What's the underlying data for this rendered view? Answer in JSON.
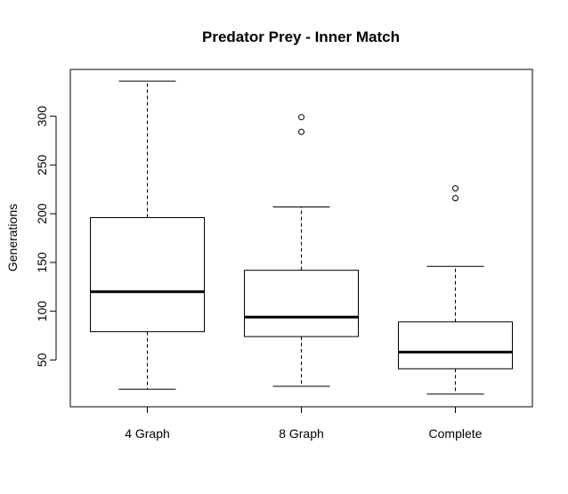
{
  "chart_data": {
    "type": "boxplot",
    "title": "Predator Prey - Inner Match",
    "xlabel": "",
    "ylabel": "Generations",
    "ylim": [
      2,
      348
    ],
    "yticks": [
      50,
      100,
      150,
      200,
      250,
      300
    ],
    "categories": [
      "4 Graph",
      "8 Graph",
      "Complete"
    ],
    "boxes": [
      {
        "category": "4 Graph",
        "whisker_low": 20,
        "q1": 79,
        "median": 120,
        "q3": 196,
        "whisker_high": 336,
        "outliers": []
      },
      {
        "category": "8 Graph",
        "whisker_low": 23,
        "q1": 74,
        "median": 94,
        "q3": 142,
        "whisker_high": 207,
        "outliers": [
          284,
          299
        ]
      },
      {
        "category": "Complete",
        "whisker_low": 15,
        "q1": 41,
        "median": 58,
        "q3": 89,
        "whisker_high": 146,
        "outliers": [
          216,
          226
        ]
      }
    ],
    "grid": false,
    "legend": "none"
  }
}
